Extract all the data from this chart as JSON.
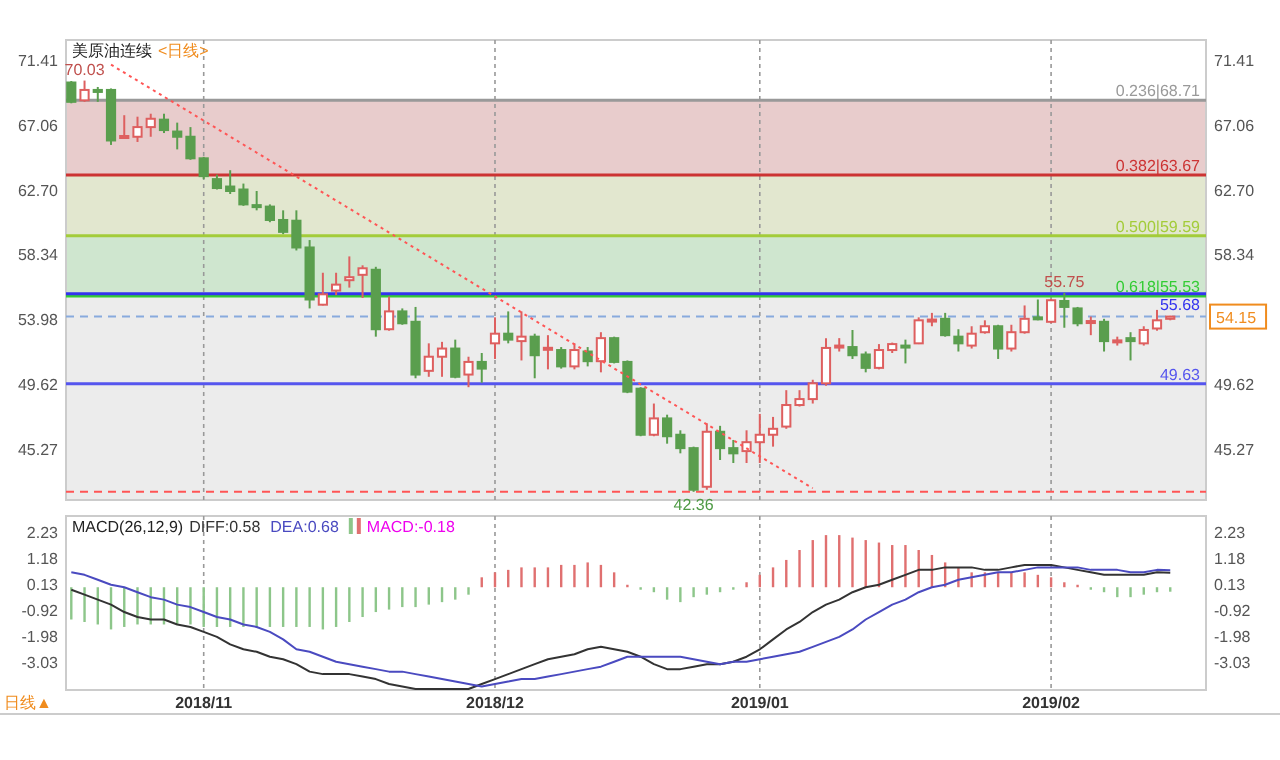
{
  "chart_data": [
    {
      "type": "candlestick",
      "title": "美原油连续",
      "subtitle": "<日线>",
      "categories": [
        null,
        null,
        null,
        null,
        null,
        null,
        null,
        null,
        null,
        null,
        "2018/11",
        null,
        null,
        null,
        null,
        null,
        null,
        null,
        null,
        null,
        null,
        null,
        null,
        null,
        null,
        null,
        null,
        null,
        null,
        null,
        null,
        null,
        "2018/12",
        null,
        null,
        null,
        null,
        null,
        null,
        null,
        null,
        null,
        null,
        null,
        null,
        null,
        null,
        null,
        null,
        null,
        null,
        null,
        "2019/01",
        null,
        null,
        null,
        null,
        null,
        null,
        null,
        null,
        null,
        null,
        null,
        null,
        null,
        null,
        null,
        null,
        null,
        null,
        null,
        null,
        null,
        "2019/02",
        null,
        null,
        null,
        null,
        null,
        null,
        null,
        null,
        null
      ],
      "ohlc": [
        [
          69.9,
          70.0,
          68.5,
          68.6
        ],
        [
          68.7,
          70.03,
          68.6,
          69.4
        ],
        [
          69.4,
          69.6,
          68.6,
          69.35
        ],
        [
          69.4,
          69.5,
          65.7,
          66.0
        ],
        [
          66.2,
          67.7,
          66.1,
          66.3
        ],
        [
          66.25,
          67.6,
          65.9,
          66.9
        ],
        [
          66.9,
          67.8,
          66.25,
          67.46
        ],
        [
          67.4,
          67.8,
          66.5,
          66.7
        ],
        [
          66.6,
          67.2,
          65.4,
          66.25
        ],
        [
          66.25,
          66.9,
          64.7,
          64.8
        ],
        [
          64.8,
          64.9,
          63.4,
          63.6
        ],
        [
          63.4,
          63.7,
          62.7,
          62.8
        ],
        [
          62.9,
          64.0,
          62.4,
          62.6
        ],
        [
          62.7,
          63.1,
          61.6,
          61.7
        ],
        [
          61.65,
          62.6,
          61.3,
          61.6
        ],
        [
          61.55,
          61.7,
          60.5,
          60.65
        ],
        [
          60.65,
          61.3,
          59.7,
          59.85
        ],
        [
          60.6,
          61.3,
          58.6,
          58.8
        ],
        [
          58.8,
          59.3,
          54.7,
          55.3
        ],
        [
          54.95,
          57.1,
          54.9,
          55.65
        ],
        [
          55.9,
          57.1,
          55.6,
          56.3
        ],
        [
          56.6,
          58.2,
          56.1,
          56.8
        ],
        [
          56.96,
          57.6,
          55.4,
          57.4
        ],
        [
          57.3,
          57.5,
          52.8,
          53.3
        ],
        [
          53.3,
          55.5,
          53.2,
          54.5
        ],
        [
          54.5,
          54.7,
          53.6,
          53.7
        ],
        [
          53.8,
          54.8,
          50.0,
          50.25
        ],
        [
          50.5,
          52.35,
          50.1,
          51.45
        ],
        [
          51.45,
          52.45,
          50.1,
          52.0
        ],
        [
          52.0,
          52.6,
          50.0,
          50.1
        ],
        [
          50.25,
          51.45,
          49.4,
          51.1
        ],
        [
          51.1,
          51.7,
          49.7,
          50.65
        ],
        [
          52.35,
          54.1,
          51.3,
          53.0
        ],
        [
          53.0,
          54.5,
          52.35,
          52.6
        ],
        [
          52.5,
          54.5,
          51.2,
          52.8
        ],
        [
          52.8,
          53.0,
          50.0,
          51.55
        ],
        [
          52.0,
          52.9,
          50.6,
          52.05
        ],
        [
          51.9,
          52.1,
          50.65,
          50.8
        ],
        [
          50.8,
          52.35,
          50.6,
          51.9
        ],
        [
          51.8,
          52.1,
          50.8,
          51.15
        ],
        [
          51.15,
          53.1,
          50.4,
          52.7
        ],
        [
          52.7,
          52.8,
          51.0,
          51.1
        ],
        [
          51.1,
          51.2,
          49.0,
          49.1
        ],
        [
          49.3,
          49.4,
          46.1,
          46.2
        ],
        [
          46.2,
          48.3,
          46.1,
          47.3
        ],
        [
          47.3,
          47.55,
          45.6,
          46.1
        ],
        [
          46.2,
          46.5,
          44.95,
          45.3
        ],
        [
          45.3,
          45.4,
          42.36,
          42.5
        ],
        [
          42.7,
          46.97,
          42.5,
          46.4
        ],
        [
          46.4,
          46.8,
          44.5,
          45.3
        ],
        [
          45.3,
          45.85,
          44.3,
          44.95
        ],
        [
          45.1,
          46.5,
          44.3,
          45.7
        ],
        [
          45.7,
          47.6,
          44.3,
          46.2
        ],
        [
          46.2,
          47.4,
          45.4,
          46.6
        ],
        [
          46.75,
          49.2,
          46.6,
          48.2
        ],
        [
          48.2,
          49.2,
          48.1,
          48.6
        ],
        [
          48.6,
          49.9,
          48.3,
          49.66
        ],
        [
          49.66,
          52.7,
          49.5,
          52.04
        ],
        [
          52.1,
          52.7,
          51.8,
          52.2
        ],
        [
          52.1,
          53.25,
          51.3,
          51.55
        ],
        [
          51.6,
          51.8,
          50.4,
          50.7
        ],
        [
          50.7,
          52.3,
          50.6,
          51.9
        ],
        [
          51.9,
          52.4,
          51.7,
          52.3
        ],
        [
          52.2,
          52.6,
          51.0,
          52.15
        ],
        [
          52.35,
          54.1,
          52.3,
          53.9
        ],
        [
          53.85,
          54.4,
          53.5,
          53.95
        ],
        [
          54.0,
          54.4,
          52.8,
          52.9
        ],
        [
          52.8,
          53.3,
          51.8,
          52.35
        ],
        [
          52.2,
          53.5,
          52.0,
          53.0
        ],
        [
          53.1,
          53.9,
          53.0,
          53.5
        ],
        [
          53.5,
          53.6,
          51.3,
          52.0
        ],
        [
          52.0,
          53.6,
          51.8,
          53.1
        ],
        [
          53.1,
          54.9,
          53.0,
          54.0
        ],
        [
          54.1,
          55.3,
          53.9,
          54.05
        ],
        [
          53.8,
          55.35,
          53.7,
          55.25
        ],
        [
          55.2,
          55.75,
          53.4,
          54.8
        ],
        [
          54.7,
          54.8,
          53.5,
          53.7
        ],
        [
          53.8,
          54.15,
          52.9,
          53.85
        ],
        [
          53.8,
          54.0,
          51.8,
          52.5
        ],
        [
          52.5,
          52.8,
          52.2,
          52.55
        ],
        [
          52.7,
          53.1,
          51.2,
          52.5
        ],
        [
          52.35,
          53.5,
          52.2,
          53.25
        ],
        [
          53.35,
          54.6,
          53.2,
          53.9
        ],
        [
          54.0,
          54.2,
          53.9,
          54.15
        ]
      ],
      "series": [
        {
          "type": "line",
          "values": [
            null,
            null,
            null,
            71.1,
            null,
            null,
            null,
            null,
            null,
            null,
            null,
            null,
            null,
            null,
            null,
            null,
            null,
            null,
            null,
            null,
            null,
            null,
            null,
            null,
            null,
            null,
            null,
            null,
            null,
            null,
            null,
            null,
            null,
            null,
            null,
            null,
            null,
            null,
            null,
            null,
            null,
            null,
            null,
            null,
            null,
            null,
            null,
            null,
            null,
            null,
            null,
            null,
            null,
            null,
            null,
            null,
            42.6,
            null,
            null,
            null,
            null,
            null,
            null,
            null,
            null,
            null,
            null,
            null,
            null,
            null,
            null,
            null,
            null,
            null,
            null,
            null,
            null,
            null,
            null,
            null,
            null,
            null,
            null,
            null
          ],
          "color": "#ff5555",
          "line_style": "dotted"
        }
      ],
      "ylim": [
        41.81,
        72.76
      ],
      "yticks": [
        71.41,
        67.06,
        {
          "value": 62.7,
          "label": "62.70"
        },
        58.34,
        53.98,
        49.62,
        45.27
      ],
      "y2lim": [
        41.81,
        72.76
      ],
      "y2ticks": [
        71.41,
        67.06,
        {
          "value": 62.7,
          "label": "62.70"
        },
        58.34,
        49.62,
        45.27
      ],
      "grid": "x",
      "tick_labels": "y",
      "bands": [
        {
          "axis": "y",
          "from": 63.67,
          "to": 68.71,
          "color": "#e8cccc"
        },
        {
          "axis": "y",
          "from": 59.59,
          "to": 63.67,
          "color": "#e2e7cf"
        },
        {
          "axis": "y",
          "from": 55.53,
          "to": 59.59,
          "color": "#cfe6cf"
        },
        {
          "axis": "y",
          "from": 41.81,
          "to": 55.53,
          "color": "#ececec"
        }
      ],
      "ref_lines": [
        {
          "axis": "y",
          "value": 68.71,
          "label": "0.236|68.71",
          "color": "#999999"
        },
        {
          "axis": "y",
          "value": 63.67,
          "label": "0.382|63.67",
          "color": "#cc3333"
        },
        {
          "axis": "y",
          "value": 59.59,
          "label": "0.500|59.59",
          "color": "#a3cc3a"
        },
        {
          "axis": "y",
          "value": 55.53,
          "label": "0.618|55.53",
          "color": "#33cc33"
        },
        {
          "axis": "y",
          "value": 55.68,
          "label": "55.68",
          "color": "#3333ee"
        },
        {
          "axis": "y",
          "value": 49.63,
          "label": "49.63",
          "color": "#5555ee"
        },
        {
          "axis": "y",
          "value": 54.15,
          "label": "54.15",
          "color": "#88aadd",
          "line_style": "dashed"
        },
        {
          "axis": "y",
          "value": 42.36,
          "color": "#ff5555",
          "line_style": "dashed"
        }
      ],
      "annotations": [
        {
          "text": "70.03",
          "y": 70.03
        },
        {
          "text": "42.36",
          "y": 42.36
        },
        {
          "text": "55.75",
          "y": 55.75
        }
      ]
    },
    {
      "type": "bar",
      "title": "MACD(26,12,9)",
      "categories": [
        null,
        null,
        null,
        null,
        null,
        null,
        null,
        null,
        null,
        null,
        "2018/11",
        null,
        null,
        null,
        null,
        null,
        null,
        null,
        null,
        null,
        null,
        null,
        null,
        null,
        null,
        null,
        null,
        null,
        null,
        null,
        null,
        null,
        "2018/12",
        null,
        null,
        null,
        null,
        null,
        null,
        null,
        null,
        null,
        null,
        null,
        null,
        null,
        null,
        null,
        null,
        null,
        null,
        null,
        "2019/01",
        null,
        null,
        null,
        null,
        null,
        null,
        null,
        null,
        null,
        null,
        null,
        null,
        null,
        null,
        null,
        null,
        null,
        null,
        null,
        null,
        null,
        "2019/02",
        null,
        null,
        null,
        null,
        null,
        null,
        null,
        null,
        null
      ],
      "series": [
        {
          "name": "DIFF:0.58",
          "type": "line",
          "color": "#333333",
          "values": [
            -0.1,
            -0.3,
            -0.5,
            -0.7,
            -1.0,
            -1.2,
            -1.3,
            -1.3,
            -1.5,
            -1.6,
            -1.8,
            -2.0,
            -2.3,
            -2.5,
            -2.6,
            -2.8,
            -2.9,
            -3.1,
            -3.4,
            -3.5,
            -3.5,
            -3.5,
            -3.6,
            -3.7,
            -3.9,
            -4.0,
            -4.1,
            -4.1,
            -4.1,
            -4.1,
            -4.1,
            -3.9,
            -3.7,
            -3.5,
            -3.3,
            -3.1,
            -2.9,
            -2.8,
            -2.7,
            -2.5,
            -2.4,
            -2.5,
            -2.6,
            -2.8,
            -3.1,
            -3.3,
            -3.3,
            -3.2,
            -3.1,
            -3.1,
            -3.0,
            -2.8,
            -2.5,
            -2.1,
            -1.7,
            -1.4,
            -1.0,
            -0.7,
            -0.5,
            -0.2,
            0.0,
            0.1,
            0.3,
            0.5,
            0.7,
            0.7,
            0.8,
            0.8,
            0.8,
            0.7,
            0.7,
            0.8,
            0.9,
            0.9,
            0.9,
            0.8,
            0.7,
            0.6,
            0.5,
            0.5,
            0.5,
            0.5,
            0.6,
            0.58
          ]
        },
        {
          "name": "DEA:0.68",
          "type": "line",
          "color": "#4a4ac0",
          "values": [
            0.6,
            0.5,
            0.3,
            0.1,
            0.0,
            -0.2,
            -0.4,
            -0.5,
            -0.7,
            -0.8,
            -1.0,
            -1.2,
            -1.3,
            -1.5,
            -1.6,
            -1.8,
            -2.1,
            -2.5,
            -2.6,
            -2.8,
            -3.0,
            -3.1,
            -3.2,
            -3.3,
            -3.4,
            -3.4,
            -3.5,
            -3.6,
            -3.7,
            -3.8,
            -3.9,
            -4.0,
            -3.9,
            -3.8,
            -3.7,
            -3.7,
            -3.6,
            -3.5,
            -3.4,
            -3.3,
            -3.2,
            -3.0,
            -2.8,
            -2.8,
            -2.8,
            -2.8,
            -2.8,
            -2.9,
            -3.0,
            -3.1,
            -3.0,
            -3.0,
            -2.9,
            -2.8,
            -2.7,
            -2.6,
            -2.4,
            -2.2,
            -2.0,
            -1.7,
            -1.3,
            -1.0,
            -0.7,
            -0.5,
            -0.2,
            0.0,
            0.1,
            0.3,
            0.4,
            0.5,
            0.6,
            0.6,
            0.7,
            0.8,
            0.8,
            0.8,
            0.8,
            0.7,
            0.7,
            0.7,
            0.6,
            0.6,
            0.7,
            0.68
          ]
        },
        {
          "name": "MACD:-0.18",
          "type": "bar",
          "colors": [
            "#8dc68a",
            "#8dc68a",
            "#8dc68a",
            "#8dc68a",
            "#8dc68a",
            "#8dc68a",
            "#8dc68a",
            "#8dc68a",
            "#8dc68a",
            "#8dc68a",
            "#8dc68a",
            "#8dc68a",
            "#8dc68a",
            "#8dc68a",
            "#8dc68a",
            "#8dc68a",
            "#8dc68a",
            "#8dc68a",
            "#8dc68a",
            "#8dc68a",
            "#8dc68a",
            "#8dc68a",
            "#8dc68a",
            "#8dc68a",
            "#8dc68a",
            "#8dc68a",
            "#8dc68a",
            "#8dc68a",
            "#8dc68a",
            "#8dc68a",
            "#8dc68a",
            "#e07070",
            "#e07070",
            "#e07070",
            "#e07070",
            "#e07070",
            "#e07070",
            "#e07070",
            "#e07070",
            "#e07070",
            "#e07070",
            "#e07070",
            "#e07070",
            "#8dc68a",
            "#8dc68a",
            "#8dc68a",
            "#8dc68a",
            "#8dc68a",
            "#8dc68a",
            "#8dc68a",
            "#8dc68a",
            "#e07070",
            "#e07070",
            "#e07070",
            "#e07070",
            "#e07070",
            "#e07070",
            "#e07070",
            "#e07070",
            "#e07070",
            "#e07070",
            "#e07070",
            "#e07070",
            "#e07070",
            "#e07070",
            "#e07070",
            "#e07070",
            "#e07070",
            "#e07070",
            "#e07070",
            "#e07070",
            "#e07070",
            "#e07070",
            "#e07070",
            "#e07070",
            "#e07070",
            "#e07070",
            "#8dc68a",
            "#8dc68a",
            "#8dc68a",
            "#8dc68a",
            "#8dc68a",
            "#8dc68a",
            "#8dc68a"
          ],
          "values": [
            -1.3,
            -1.4,
            -1.5,
            -1.7,
            -1.6,
            -1.5,
            -1.5,
            -1.5,
            -1.5,
            -1.5,
            -1.6,
            -1.6,
            -1.6,
            -1.6,
            -1.6,
            -1.6,
            -1.6,
            -1.6,
            -1.6,
            -1.7,
            -1.6,
            -1.4,
            -1.2,
            -1.0,
            -0.9,
            -0.8,
            -0.8,
            -0.7,
            -0.6,
            -0.5,
            -0.3,
            0.4,
            0.6,
            0.7,
            0.8,
            0.8,
            0.8,
            0.9,
            0.9,
            1.0,
            0.9,
            0.6,
            0.1,
            -0.1,
            -0.2,
            -0.5,
            -0.6,
            -0.4,
            -0.3,
            -0.2,
            -0.1,
            0.2,
            0.5,
            0.8,
            1.1,
            1.5,
            1.9,
            2.1,
            2.1,
            2.0,
            1.9,
            1.8,
            1.7,
            1.7,
            1.5,
            1.3,
            1.0,
            0.8,
            0.6,
            0.6,
            0.6,
            0.6,
            0.6,
            0.5,
            0.4,
            0.2,
            0.1,
            -0.1,
            -0.2,
            -0.4,
            -0.4,
            -0.3,
            -0.2,
            -0.18
          ]
        }
      ],
      "ylim": [
        -4.14,
        2.87
      ],
      "yticks": [
        2.23,
        1.18,
        0.13,
        -0.92,
        -1.98,
        -3.03
      ],
      "y2lim": [
        -4.14,
        2.87
      ],
      "y2ticks": [
        2.23,
        1.18,
        0.13,
        -0.92,
        -1.98,
        -3.03
      ],
      "grid": "x",
      "legend": "top left",
      "annotations": [
        "日线▲"
      ]
    }
  ]
}
